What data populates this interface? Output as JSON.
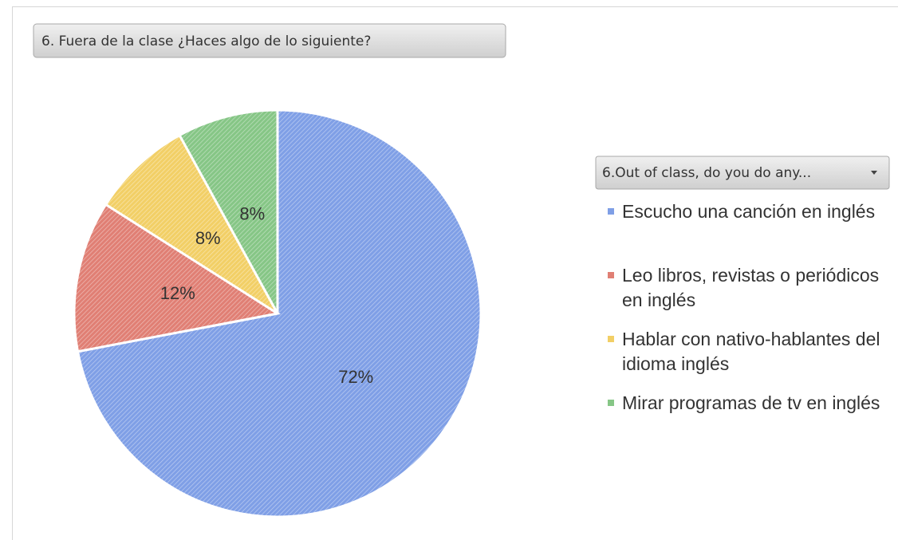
{
  "chart_data": {
    "type": "pie",
    "title": "6. Fuera de la clase ¿Haces algo de lo siguiente?",
    "legend_title": "6.Out of class, do you do any...",
    "categories": [
      "Escucho una canción en inglés",
      "Leo libros, revistas o periódicos en inglés",
      "Hablar con nativo-hablantes del idioma inglés",
      "Mirar programas de tv en inglés"
    ],
    "values": [
      72,
      12,
      8,
      8
    ],
    "value_labels": [
      "72%",
      "12%",
      "8%",
      "8%"
    ],
    "colors": [
      "#7f9fe6",
      "#e07f74",
      "#f2cf66",
      "#86c686"
    ],
    "legend": "right"
  }
}
